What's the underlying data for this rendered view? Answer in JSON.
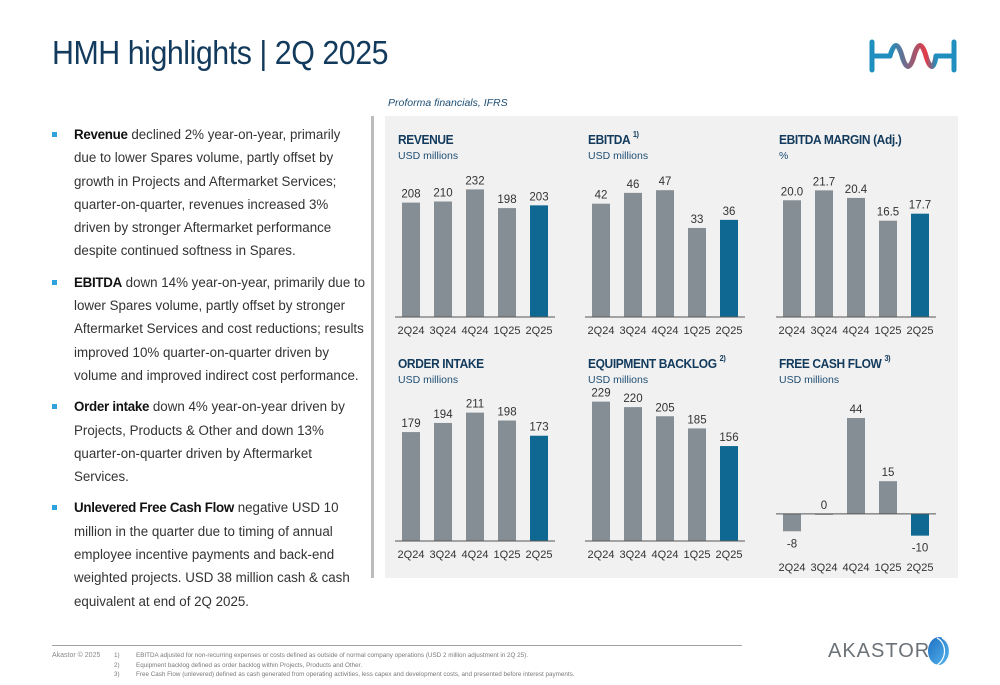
{
  "header": {
    "title": "HMH highlights | 2Q 2025",
    "logo": "hmh-logo"
  },
  "subnote": "Proforma financials, IFRS",
  "bullets": [
    {
      "bold": "Revenue",
      "text": " declined 2% year-on-year, primarily due to lower Spares volume, partly offset by growth in Projects and Aftermarket Services; quarter-on-quarter, revenues increased 3% driven by stronger Aftermarket performance despite continued softness in Spares."
    },
    {
      "bold": "EBITDA",
      "text": " down 14% year-on-year, primarily due to lower Spares volume, partly offset by stronger Aftermarket Services and cost reductions; results improved 10% quarter-on-quarter driven by volume and improved indirect cost performance."
    },
    {
      "bold": "Order intake",
      "text": " down 4% year-on-year driven by Projects, Products & Other and down 13% quarter-on-quarter driven by Aftermarket Services."
    },
    {
      "bold": "Unlevered Free Cash Flow",
      "text": " negative USD 10 million in the quarter due to timing of annual employee incentive payments and back-end weighted projects. USD 38 million cash & cash equivalent at end of 2Q 2025."
    }
  ],
  "colors": {
    "bar_default": "#858e94",
    "bar_highlight": "#0f6891",
    "title": "#123a5c",
    "bullet": "#2ea3dd",
    "panel_bg": "#f1f1f1"
  },
  "chart_data": [
    {
      "type": "bar",
      "title": "REVENUE",
      "footnote_ref": "",
      "unit": "USD millions",
      "categories": [
        "2Q24",
        "3Q24",
        "4Q24",
        "1Q25",
        "2Q25"
      ],
      "values": [
        208,
        210,
        232,
        198,
        203
      ],
      "labels": [
        "208",
        "210",
        "232",
        "198",
        "203"
      ],
      "highlight_index": 4,
      "ylim": [
        0,
        260
      ]
    },
    {
      "type": "bar",
      "title": "EBITDA",
      "footnote_ref": "1)",
      "unit": "USD millions",
      "categories": [
        "2Q24",
        "3Q24",
        "4Q24",
        "1Q25",
        "2Q25"
      ],
      "values": [
        42,
        46,
        47,
        33,
        36
      ],
      "labels": [
        "42",
        "46",
        "47",
        "33",
        "36"
      ],
      "highlight_index": 4,
      "ylim": [
        0,
        53
      ]
    },
    {
      "type": "bar",
      "title": "EBITDA MARGIN (Adj.)",
      "footnote_ref": "",
      "unit": "%",
      "categories": [
        "2Q24",
        "3Q24",
        "4Q24",
        "1Q25",
        "2Q25"
      ],
      "values": [
        20.0,
        21.7,
        20.4,
        16.5,
        17.7
      ],
      "labels": [
        "20.0",
        "21.7",
        "20.4",
        "16.5",
        "17.7"
      ],
      "highlight_index": 4,
      "ylim": [
        0,
        24.5
      ]
    },
    {
      "type": "bar",
      "title": "ORDER INTAKE",
      "footnote_ref": "",
      "unit": "USD millions",
      "categories": [
        "2Q24",
        "3Q24",
        "4Q24",
        "1Q25",
        "2Q25"
      ],
      "values": [
        179,
        194,
        211,
        198,
        173
      ],
      "labels": [
        "179",
        "194",
        "211",
        "198",
        "173"
      ],
      "highlight_index": 4,
      "ylim": [
        0,
        235
      ]
    },
    {
      "type": "bar",
      "title": "EQUIPMENT BACKLOG",
      "footnote_ref": "2)",
      "unit": "USD millions",
      "categories": [
        "2Q24",
        "3Q24",
        "4Q24",
        "1Q25",
        "2Q25"
      ],
      "values": [
        229,
        220,
        205,
        185,
        156
      ],
      "labels": [
        "229",
        "220",
        "205",
        "185",
        "156"
      ],
      "highlight_index": 4,
      "ylim": [
        0,
        235
      ]
    },
    {
      "type": "bar",
      "title": "FREE CASH FLOW",
      "footnote_ref": "3)",
      "unit": "USD millions",
      "categories": [
        "2Q24",
        "3Q24",
        "4Q24",
        "1Q25",
        "2Q25"
      ],
      "values": [
        -8,
        0,
        44,
        15,
        -10
      ],
      "labels": [
        "-8",
        "0",
        "44",
        "15",
        "-10"
      ],
      "highlight_index": 4,
      "ylim": [
        -12,
        44
      ]
    }
  ],
  "footer": {
    "copyright": "Akastor © 2025",
    "footnotes": [
      {
        "num": "1)",
        "text": "EBITDA adjusted for non-recurring expenses or costs defined as outside of normal company operations (USD 2 million adjustment in 2Q 25)."
      },
      {
        "num": "2)",
        "text": "Equipment backlog defined as order backlog within Projects, Products and Other."
      },
      {
        "num": "3)",
        "text": "Free Cash Flow (unlevered) defined as cash generated from operating activities, less capex and development costs, and presented before interest payments."
      }
    ],
    "brand": "AKASTOR"
  }
}
